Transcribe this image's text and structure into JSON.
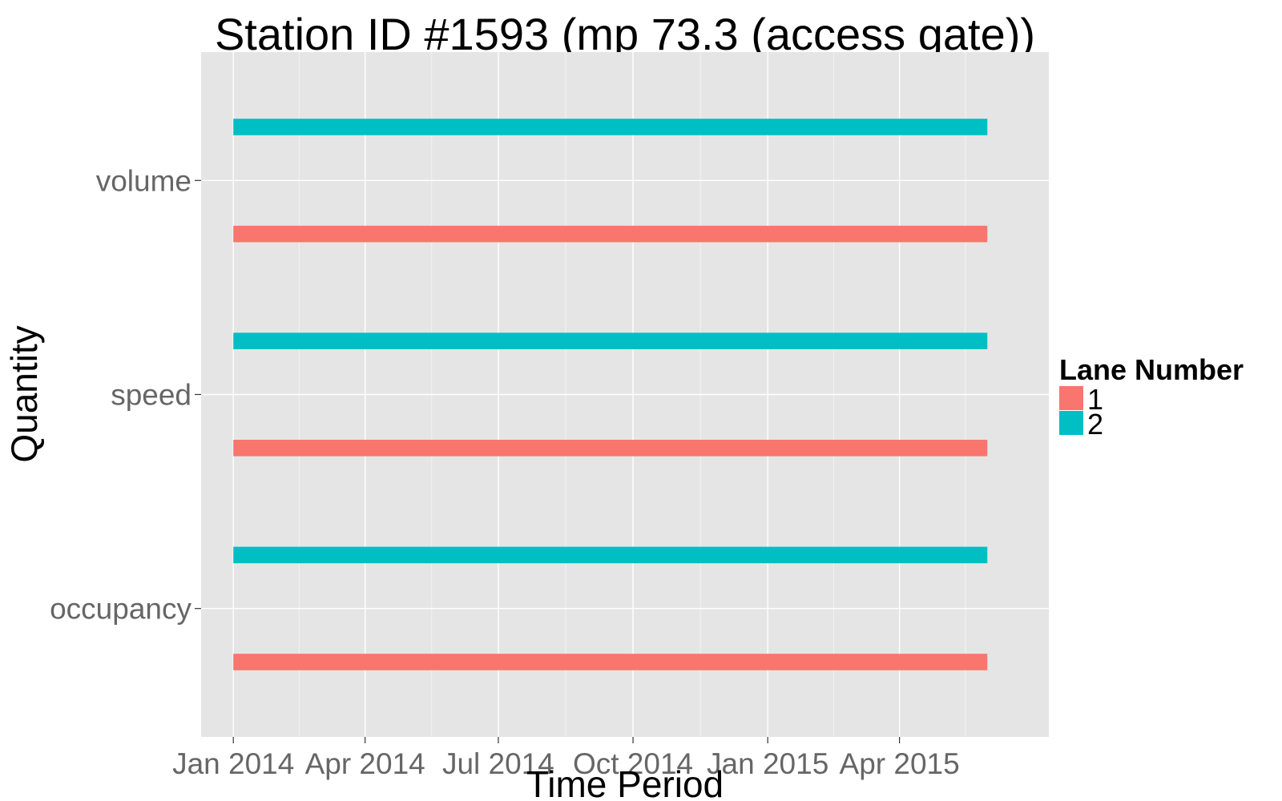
{
  "chart_data": {
    "type": "bar",
    "orientation": "horizontal",
    "title": "Station ID #1593 (mp 73.3 (access gate))",
    "xlabel": "Time Period",
    "ylabel": "Quantity",
    "x_ticks": [
      "Jan 2014",
      "Apr 2014",
      "Jul 2014",
      "Oct 2014",
      "Jan 2015",
      "Apr 2015"
    ],
    "x_tick_values": [
      "2014-01-01",
      "2014-04-01",
      "2014-07-01",
      "2014-10-01",
      "2015-01-01",
      "2015-04-01"
    ],
    "xlim": [
      "2013-12-10",
      "2015-07-12"
    ],
    "categories": [
      "volume",
      "speed",
      "occupancy"
    ],
    "legend": {
      "title": "Lane Number",
      "position": "right",
      "entries": [
        {
          "label": "1",
          "color": "#F8766D"
        },
        {
          "label": "2",
          "color": "#00BFC4"
        }
      ]
    },
    "series": [
      {
        "name": "1",
        "color": "#F8766D",
        "segments": [
          {
            "category": "volume",
            "start": "2014-01-01",
            "end": "2015-05-31"
          },
          {
            "category": "speed",
            "start": "2014-01-01",
            "end": "2015-05-31"
          },
          {
            "category": "occupancy",
            "start": "2014-01-01",
            "end": "2015-05-31"
          }
        ]
      },
      {
        "name": "2",
        "color": "#00BFC4",
        "segments": [
          {
            "category": "volume",
            "start": "2014-01-01",
            "end": "2015-05-31"
          },
          {
            "category": "speed",
            "start": "2014-01-01",
            "end": "2015-05-31"
          },
          {
            "category": "occupancy",
            "start": "2014-01-01",
            "end": "2015-05-31"
          }
        ]
      }
    ],
    "grid": true,
    "panel_background": "#E5E5E5",
    "grid_color": "#FFFFFF"
  }
}
